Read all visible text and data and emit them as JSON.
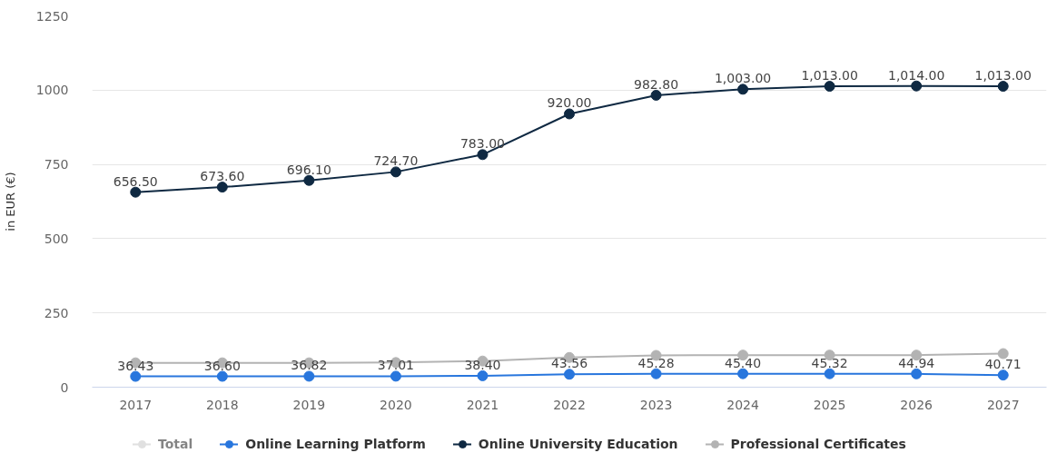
{
  "chart_data": {
    "type": "line",
    "categories": [
      "2017",
      "2018",
      "2019",
      "2020",
      "2021",
      "2022",
      "2023",
      "2024",
      "2025",
      "2026",
      "2027"
    ],
    "ylabel": "in EUR (€)",
    "ylim": [
      0,
      1250
    ],
    "yticks": [
      0,
      250,
      500,
      750,
      1000,
      1250
    ],
    "grid": "y",
    "legend": "bottom",
    "marker": "circle",
    "series": [
      {
        "name": "Total",
        "color": "#cccccc",
        "values": [
          null,
          null,
          null,
          null,
          null,
          null,
          null,
          null,
          null,
          null,
          null
        ]
      },
      {
        "name": "Online Learning Platform",
        "color": "#2876dd",
        "values": [
          36.43,
          36.6,
          36.82,
          37.01,
          38.4,
          43.56,
          45.28,
          45.4,
          45.32,
          44.94,
          40.71
        ],
        "value_labels": [
          "36.43",
          "36.60",
          "36.82",
          "37.01",
          "38.40",
          "43.56",
          "45.28",
          "45.40",
          "45.32",
          "44.94",
          "40.71"
        ]
      },
      {
        "name": "Online University Education",
        "color": "#0f2942",
        "values": [
          656.5,
          673.6,
          696.1,
          724.7,
          783.0,
          920.0,
          982.8,
          1003.0,
          1013.0,
          1014.0,
          1013.0
        ],
        "value_labels": [
          "656.50",
          "673.60",
          "696.10",
          "724.70",
          "783.00",
          "920.00",
          "982.80",
          "1,003.00",
          "1,013.00",
          "1,014.00",
          "1,013.00"
        ]
      },
      {
        "name": "Professional Certificates",
        "color": "#b3b3b3",
        "values": [
          82,
          82,
          82,
          83,
          88,
          100,
          107,
          108,
          108,
          108,
          113
        ]
      }
    ]
  }
}
